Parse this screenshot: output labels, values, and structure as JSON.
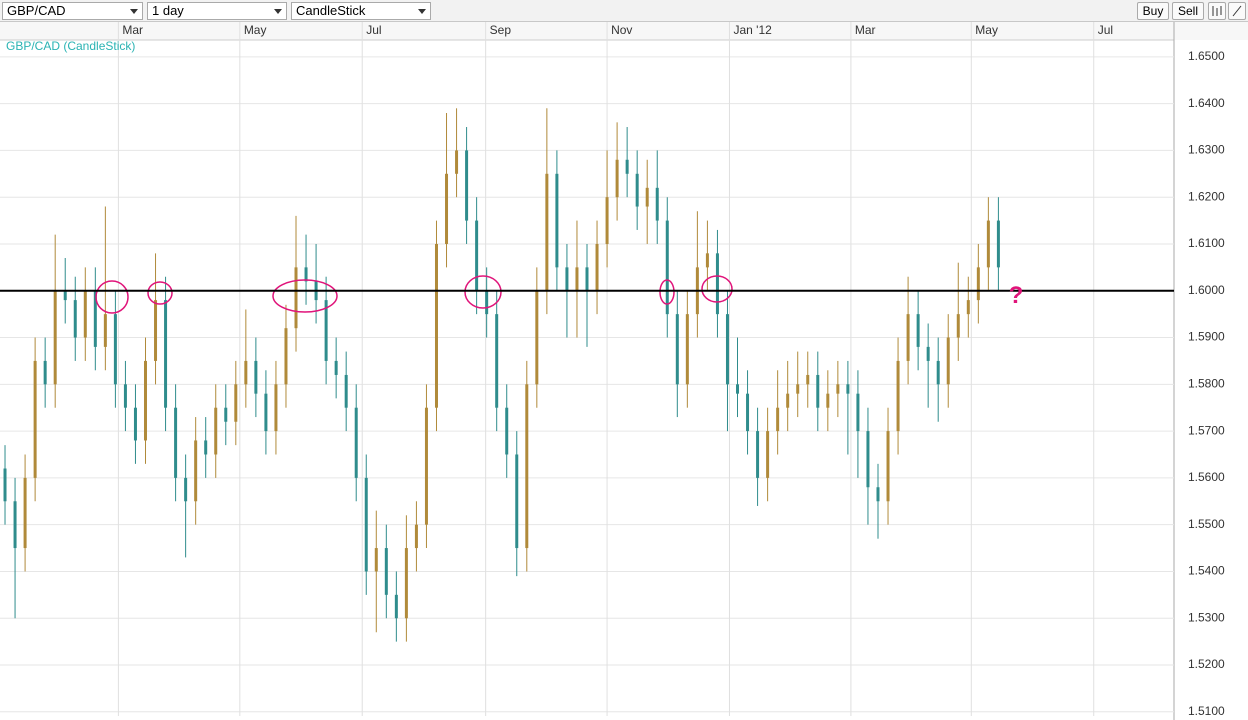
{
  "toolbar": {
    "symbol": "GBP/CAD",
    "interval": "1 day",
    "chart_style": "CandleStick",
    "buttons": [
      "Buy",
      "Sell"
    ]
  },
  "chart_data": {
    "type": "candlestick",
    "series_label": "GBP/CAD (CandleStick)",
    "up_color": "#b08a3a",
    "down_color": "#2f8c8c",
    "grid": true,
    "xlim": [
      -0.5,
      116.5
    ],
    "xticks": [
      {
        "value": 11.3,
        "label": "Mar"
      },
      {
        "value": 23.4,
        "label": "May"
      },
      {
        "value": 35.6,
        "label": "Jul"
      },
      {
        "value": 47.9,
        "label": "Sep"
      },
      {
        "value": 60,
        "label": "Nov"
      },
      {
        "value": 72.2,
        "label": "Jan '12"
      },
      {
        "value": 84.3,
        "label": "Mar"
      },
      {
        "value": 96.3,
        "label": "May"
      },
      {
        "value": 108.5,
        "label": "Jul"
      }
    ],
    "ylim": [
      1.5091,
      1.6536
    ],
    "yticks": [
      {
        "value": 1.51,
        "label": "1.5100"
      },
      {
        "value": 1.52,
        "label": "1.5200"
      },
      {
        "value": 1.53,
        "label": "1.5300"
      },
      {
        "value": 1.54,
        "label": "1.5400"
      },
      {
        "value": 1.55,
        "label": "1.5500"
      },
      {
        "value": 1.56,
        "label": "1.5600"
      },
      {
        "value": 1.57,
        "label": "1.5700"
      },
      {
        "value": 1.58,
        "label": "1.5800"
      },
      {
        "value": 1.59,
        "label": "1.5900"
      },
      {
        "value": 1.6,
        "label": "1.6000"
      },
      {
        "value": 1.61,
        "label": "1.6100"
      },
      {
        "value": 1.62,
        "label": "1.6200"
      },
      {
        "value": 1.63,
        "label": "1.6300"
      },
      {
        "value": 1.64,
        "label": "1.6400"
      },
      {
        "value": 1.65,
        "label": "1.6500"
      }
    ],
    "hline": 1.6,
    "hline_color": "#000000",
    "annotation": "?",
    "annotation_color": "#e0147a",
    "open": [
      1.562,
      1.555,
      1.545,
      1.56,
      1.585,
      1.58,
      1.6,
      1.598,
      1.59,
      1.6,
      1.588,
      1.595,
      1.58,
      1.575,
      1.568,
      1.585,
      1.598,
      1.575,
      1.56,
      1.555,
      1.568,
      1.565,
      1.575,
      1.572,
      1.58,
      1.585,
      1.578,
      1.57,
      1.58,
      1.592,
      1.605,
      1.602,
      1.598,
      1.585,
      1.582,
      1.575,
      1.56,
      1.54,
      1.545,
      1.535,
      1.53,
      1.545,
      1.55,
      1.575,
      1.61,
      1.625,
      1.63,
      1.615,
      1.6,
      1.595,
      1.575,
      1.565,
      1.545,
      1.58,
      1.6,
      1.625,
      1.605,
      1.6,
      1.605,
      1.6,
      1.61,
      1.62,
      1.628,
      1.625,
      1.618,
      1.622,
      1.615,
      1.595,
      1.58,
      1.595,
      1.605,
      1.608,
      1.595,
      1.58,
      1.578,
      1.57,
      1.56,
      1.57,
      1.575,
      1.578,
      1.58,
      1.582,
      1.575,
      1.578,
      1.58,
      1.578,
      1.57,
      1.558,
      1.555,
      1.57,
      1.585,
      1.595,
      1.588,
      1.585,
      1.58,
      1.59,
      1.595,
      1.598,
      1.605,
      1.615
    ],
    "high": [
      1.567,
      1.56,
      1.565,
      1.59,
      1.59,
      1.612,
      1.607,
      1.603,
      1.605,
      1.605,
      1.618,
      1.6,
      1.585,
      1.58,
      1.59,
      1.608,
      1.603,
      1.58,
      1.565,
      1.573,
      1.573,
      1.58,
      1.58,
      1.585,
      1.596,
      1.59,
      1.583,
      1.585,
      1.597,
      1.616,
      1.612,
      1.61,
      1.603,
      1.59,
      1.587,
      1.58,
      1.565,
      1.553,
      1.55,
      1.54,
      1.552,
      1.555,
      1.58,
      1.615,
      1.638,
      1.639,
      1.635,
      1.62,
      1.605,
      1.6,
      1.58,
      1.57,
      1.585,
      1.605,
      1.639,
      1.63,
      1.61,
      1.615,
      1.61,
      1.615,
      1.63,
      1.636,
      1.635,
      1.63,
      1.628,
      1.63,
      1.62,
      1.6,
      1.6,
      1.617,
      1.615,
      1.613,
      1.6,
      1.59,
      1.583,
      1.575,
      1.575,
      1.583,
      1.585,
      1.587,
      1.587,
      1.587,
      1.583,
      1.585,
      1.585,
      1.583,
      1.575,
      1.563,
      1.575,
      1.59,
      1.603,
      1.6,
      1.593,
      1.59,
      1.595,
      1.606,
      1.603,
      1.61,
      1.62,
      1.62
    ],
    "low": [
      1.55,
      1.53,
      1.54,
      1.555,
      1.575,
      1.575,
      1.593,
      1.585,
      1.585,
      1.583,
      1.583,
      1.575,
      1.57,
      1.563,
      1.563,
      1.58,
      1.57,
      1.555,
      1.543,
      1.55,
      1.56,
      1.56,
      1.567,
      1.567,
      1.575,
      1.573,
      1.565,
      1.565,
      1.575,
      1.587,
      1.597,
      1.593,
      1.58,
      1.577,
      1.57,
      1.555,
      1.535,
      1.527,
      1.53,
      1.525,
      1.525,
      1.54,
      1.545,
      1.57,
      1.605,
      1.62,
      1.61,
      1.595,
      1.59,
      1.57,
      1.56,
      1.539,
      1.54,
      1.575,
      1.595,
      1.6,
      1.59,
      1.59,
      1.588,
      1.595,
      1.605,
      1.615,
      1.62,
      1.613,
      1.61,
      1.61,
      1.59,
      1.573,
      1.575,
      1.59,
      1.6,
      1.59,
      1.57,
      1.573,
      1.565,
      1.554,
      1.555,
      1.565,
      1.57,
      1.573,
      1.575,
      1.57,
      1.57,
      1.573,
      1.565,
      1.56,
      1.55,
      1.547,
      1.55,
      1.565,
      1.58,
      1.583,
      1.575,
      1.572,
      1.575,
      1.585,
      1.59,
      1.593,
      1.6,
      1.6
    ],
    "close": [
      1.555,
      1.545,
      1.56,
      1.585,
      1.58,
      1.6,
      1.598,
      1.59,
      1.6,
      1.588,
      1.595,
      1.58,
      1.575,
      1.568,
      1.585,
      1.598,
      1.575,
      1.56,
      1.555,
      1.568,
      1.565,
      1.575,
      1.572,
      1.58,
      1.585,
      1.578,
      1.57,
      1.58,
      1.592,
      1.605,
      1.602,
      1.598,
      1.585,
      1.582,
      1.575,
      1.56,
      1.54,
      1.545,
      1.535,
      1.53,
      1.545,
      1.55,
      1.575,
      1.61,
      1.625,
      1.63,
      1.615,
      1.6,
      1.595,
      1.575,
      1.565,
      1.545,
      1.58,
      1.6,
      1.625,
      1.605,
      1.6,
      1.605,
      1.6,
      1.61,
      1.62,
      1.628,
      1.625,
      1.618,
      1.622,
      1.615,
      1.595,
      1.58,
      1.595,
      1.605,
      1.608,
      1.595,
      1.58,
      1.578,
      1.57,
      1.56,
      1.57,
      1.575,
      1.578,
      1.58,
      1.582,
      1.575,
      1.578,
      1.58,
      1.578,
      1.57,
      1.558,
      1.555,
      1.57,
      1.585,
      1.595,
      1.588,
      1.585,
      1.58,
      1.59,
      1.595,
      1.598,
      1.605,
      1.615,
      1.605
    ]
  }
}
